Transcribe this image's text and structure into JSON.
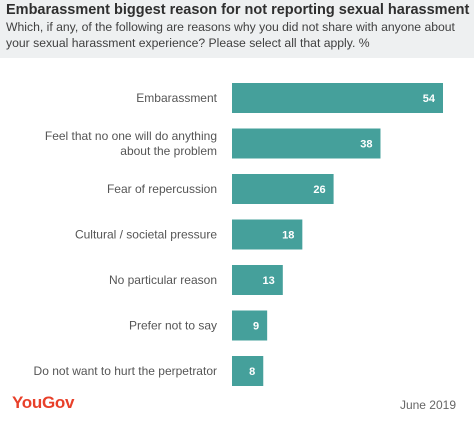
{
  "header": {
    "title": "Embarassment biggest reason for not reporting sexual harassment",
    "subtitle": "Which, if any, of the following are reasons why you did not share with anyone about your sexual harassment experience? Please select all that apply. %"
  },
  "footer": {
    "logo": "YouGov",
    "date": "June 2019"
  },
  "colors": {
    "bar": "#45a09b",
    "header_bg": "#eef0f1",
    "logo": "#e8402a"
  },
  "chart_data": {
    "type": "bar",
    "orientation": "horizontal",
    "title": "Embarassment biggest reason for not reporting sexual harassment",
    "categories": [
      [
        "Embarassment"
      ],
      [
        "Feel that no one will do anything",
        "about the problem"
      ],
      [
        "Fear of repercussion"
      ],
      [
        "Cultural / societal pressure"
      ],
      [
        "No particular reason"
      ],
      [
        "Prefer not to say"
      ],
      [
        "Do not want to hurt the perpetrator"
      ]
    ],
    "values": [
      54,
      38,
      26,
      18,
      13,
      9,
      8
    ],
    "xlim": [
      0,
      54
    ],
    "grid": false,
    "legend": "none"
  }
}
